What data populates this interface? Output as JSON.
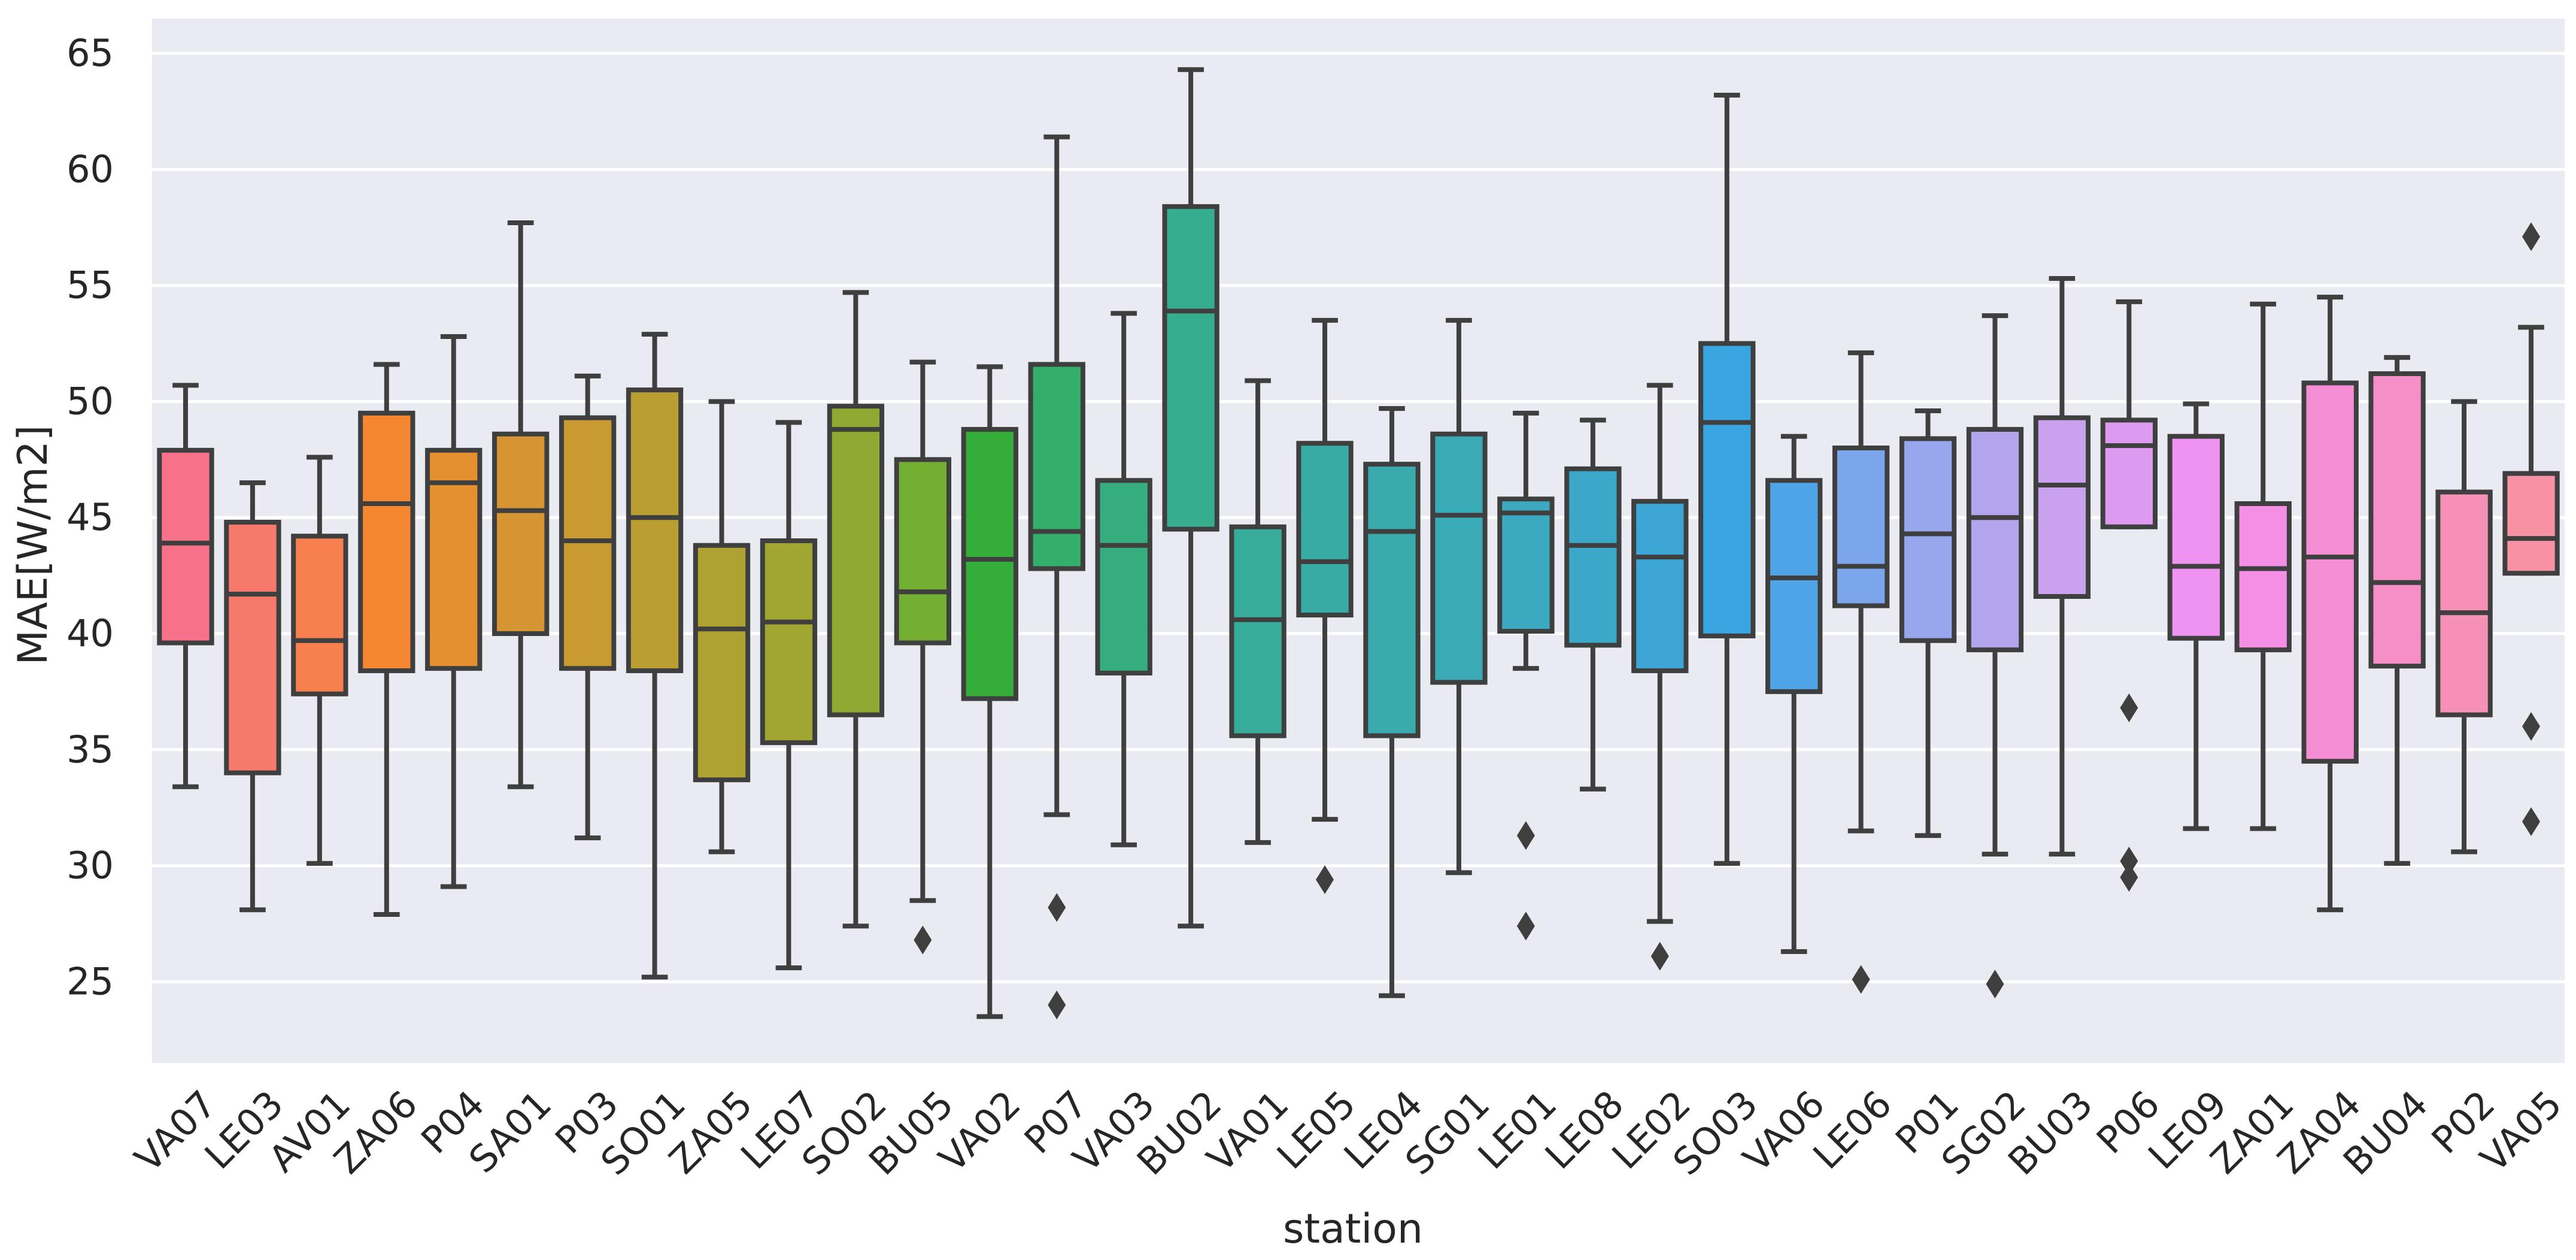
{
  "chart_data": {
    "type": "box",
    "xlabel": "station",
    "ylabel": "MAE[W/m2]",
    "ylim": [
      21.5,
      66.5
    ],
    "yticks": [
      25,
      30,
      35,
      40,
      45,
      50,
      55,
      60,
      65
    ],
    "ytick_labels": [
      "25",
      "30",
      "35",
      "40",
      "45",
      "50",
      "55",
      "60",
      "65"
    ],
    "grid": true,
    "categories": [
      "VA07",
      "LE03",
      "AV01",
      "ZA06",
      "P04",
      "SA01",
      "P03",
      "SO01",
      "ZA05",
      "LE07",
      "SO02",
      "BU05",
      "VA02",
      "P07",
      "VA03",
      "BU02",
      "VA01",
      "LE05",
      "LE04",
      "SG01",
      "LE01",
      "LE08",
      "LE02",
      "SO03",
      "VA06",
      "LE06",
      "P01",
      "SG02",
      "BU03",
      "P06",
      "LE09",
      "ZA01",
      "ZA04",
      "BU04",
      "P02",
      "VA05"
    ],
    "boxes": [
      {
        "station": "VA07",
        "whislo": 33.4,
        "q1": 39.6,
        "med": 43.9,
        "q3": 47.9,
        "whishi": 50.7,
        "fliers": [],
        "color": "#f77189"
      },
      {
        "station": "LE03",
        "whislo": 28.1,
        "q1": 34.0,
        "med": 41.7,
        "q3": 44.8,
        "whishi": 46.5,
        "fliers": [],
        "color": "#f7796b"
      },
      {
        "station": "AV01",
        "whislo": 30.1,
        "q1": 37.4,
        "med": 39.7,
        "q3": 44.2,
        "whishi": 47.6,
        "fliers": [],
        "color": "#f7804e"
      },
      {
        "station": "ZA06",
        "whislo": 27.9,
        "q1": 38.4,
        "med": 45.6,
        "q3": 49.5,
        "whishi": 51.6,
        "fliers": [],
        "color": "#f4872f"
      },
      {
        "station": "P04",
        "whislo": 29.1,
        "q1": 38.5,
        "med": 46.5,
        "q3": 47.9,
        "whishi": 52.8,
        "fliers": [],
        "color": "#e49031"
      },
      {
        "station": "SA01",
        "whislo": 33.4,
        "q1": 40.0,
        "med": 45.3,
        "q3": 48.6,
        "whishi": 57.7,
        "fliers": [],
        "color": "#d59532"
      },
      {
        "station": "P03",
        "whislo": 31.2,
        "q1": 38.5,
        "med": 44.0,
        "q3": 49.3,
        "whishi": 51.1,
        "fliers": [],
        "color": "#c89b32"
      },
      {
        "station": "SO01",
        "whislo": 25.2,
        "q1": 38.4,
        "med": 45.0,
        "q3": 50.5,
        "whishi": 52.9,
        "fliers": [],
        "color": "#bb9e32"
      },
      {
        "station": "ZA05",
        "whislo": 30.6,
        "q1": 33.7,
        "med": 40.2,
        "q3": 43.8,
        "whishi": 50.0,
        "fliers": [],
        "color": "#aea232"
      },
      {
        "station": "LE07",
        "whislo": 25.6,
        "q1": 35.3,
        "med": 40.5,
        "q3": 44.0,
        "whishi": 49.1,
        "fliers": [],
        "color": "#a1a632"
      },
      {
        "station": "SO02",
        "whislo": 27.4,
        "q1": 36.5,
        "med": 48.8,
        "q3": 49.8,
        "whishi": 54.7,
        "fliers": [],
        "color": "#8fa933"
      },
      {
        "station": "BU05",
        "whislo": 28.5,
        "q1": 39.6,
        "med": 41.8,
        "q3": 47.5,
        "whishi": 51.7,
        "fliers": [
          26.8
        ],
        "color": "#74ae33"
      },
      {
        "station": "VA02",
        "whislo": 23.5,
        "q1": 37.2,
        "med": 43.2,
        "q3": 48.8,
        "whishi": 51.5,
        "fliers": [],
        "color": "#35ae39"
      },
      {
        "station": "P07",
        "whislo": 32.2,
        "q1": 42.8,
        "med": 44.4,
        "q3": 51.6,
        "whishi": 61.4,
        "fliers": [
          28.2,
          24.0
        ],
        "color": "#34ae6b"
      },
      {
        "station": "VA03",
        "whislo": 30.9,
        "q1": 38.3,
        "med": 43.8,
        "q3": 46.6,
        "whishi": 53.8,
        "fliers": [],
        "color": "#35ad7e"
      },
      {
        "station": "BU02",
        "whislo": 27.4,
        "q1": 44.5,
        "med": 53.9,
        "q3": 58.4,
        "whishi": 64.3,
        "fliers": [],
        "color": "#36ad8e"
      },
      {
        "station": "VA01",
        "whislo": 31.0,
        "q1": 35.6,
        "med": 40.6,
        "q3": 44.6,
        "whishi": 50.9,
        "fliers": [],
        "color": "#37ac9a"
      },
      {
        "station": "LE05",
        "whislo": 32.0,
        "q1": 40.8,
        "med": 43.1,
        "q3": 48.2,
        "whishi": 53.5,
        "fliers": [
          29.4
        ],
        "color": "#38aba4"
      },
      {
        "station": "LE04",
        "whislo": 24.4,
        "q1": 35.6,
        "med": 44.4,
        "q3": 47.3,
        "whishi": 49.7,
        "fliers": [],
        "color": "#39abad"
      },
      {
        "station": "SG01",
        "whislo": 29.7,
        "q1": 37.9,
        "med": 45.1,
        "q3": 48.6,
        "whishi": 53.5,
        "fliers": [],
        "color": "#3aaab6"
      },
      {
        "station": "LE01",
        "whislo": 38.5,
        "q1": 40.1,
        "med": 45.2,
        "q3": 45.8,
        "whishi": 49.5,
        "fliers": [
          31.3,
          27.4
        ],
        "color": "#3ba9bf"
      },
      {
        "station": "LE08",
        "whislo": 33.3,
        "q1": 39.5,
        "med": 43.8,
        "q3": 47.1,
        "whishi": 49.2,
        "fliers": [],
        "color": "#3ca8c9"
      },
      {
        "station": "LE02",
        "whislo": 27.6,
        "q1": 38.4,
        "med": 43.3,
        "q3": 45.7,
        "whishi": 50.7,
        "fliers": [
          26.1
        ],
        "color": "#3ea6d4"
      },
      {
        "station": "SO03",
        "whislo": 30.1,
        "q1": 39.9,
        "med": 49.1,
        "q3": 52.5,
        "whishi": 63.2,
        "fliers": [],
        "color": "#39a5e1"
      },
      {
        "station": "VA06",
        "whislo": 26.3,
        "q1": 37.5,
        "med": 42.4,
        "q3": 46.6,
        "whishi": 48.5,
        "fliers": [],
        "color": "#4fa4e8"
      },
      {
        "station": "LE06",
        "whislo": 31.5,
        "q1": 41.2,
        "med": 42.9,
        "q3": 48.0,
        "whishi": 52.1,
        "fliers": [
          25.1
        ],
        "color": "#7ba6eb"
      },
      {
        "station": "P01",
        "whislo": 31.3,
        "q1": 39.7,
        "med": 44.3,
        "q3": 48.4,
        "whishi": 49.6,
        "fliers": [],
        "color": "#98a6ed"
      },
      {
        "station": "SG02",
        "whislo": 30.5,
        "q1": 39.3,
        "med": 45.0,
        "q3": 48.8,
        "whishi": 53.7,
        "fliers": [
          24.9
        ],
        "color": "#b2a5ee"
      },
      {
        "station": "BU03",
        "whislo": 30.5,
        "q1": 41.6,
        "med": 46.4,
        "q3": 49.3,
        "whishi": 55.3,
        "fliers": [],
        "color": "#c9a1ef"
      },
      {
        "station": "P06",
        "whislo": 44.6,
        "q1": 44.6,
        "med": 48.1,
        "q3": 49.2,
        "whishi": 54.3,
        "fliers": [
          36.8,
          30.2,
          29.5
        ],
        "color": "#dc9bf0"
      },
      {
        "station": "LE09",
        "whislo": 31.6,
        "q1": 39.8,
        "med": 42.9,
        "q3": 48.5,
        "whishi": 49.9,
        "fliers": [],
        "color": "#ef93f0"
      },
      {
        "station": "ZA01",
        "whislo": 31.6,
        "q1": 39.3,
        "med": 42.8,
        "q3": 45.6,
        "whishi": 54.2,
        "fliers": [],
        "color": "#f58ee5"
      },
      {
        "station": "ZA04",
        "whislo": 28.1,
        "q1": 34.5,
        "med": 43.3,
        "q3": 50.8,
        "whishi": 54.5,
        "fliers": [],
        "color": "#f68ed6"
      },
      {
        "station": "BU04",
        "whislo": 30.1,
        "q1": 38.6,
        "med": 42.2,
        "q3": 51.2,
        "whishi": 51.9,
        "fliers": [],
        "color": "#f68ec7"
      },
      {
        "station": "P02",
        "whislo": 30.6,
        "q1": 36.5,
        "med": 40.9,
        "q3": 46.1,
        "whishi": 50.0,
        "fliers": [],
        "color": "#f690b6"
      },
      {
        "station": "VA05",
        "whislo": 42.6,
        "q1": 42.6,
        "med": 44.1,
        "q3": 46.9,
        "whishi": 53.2,
        "fliers": [
          57.1,
          36.0,
          31.9
        ],
        "color": "#f792a4"
      }
    ]
  }
}
